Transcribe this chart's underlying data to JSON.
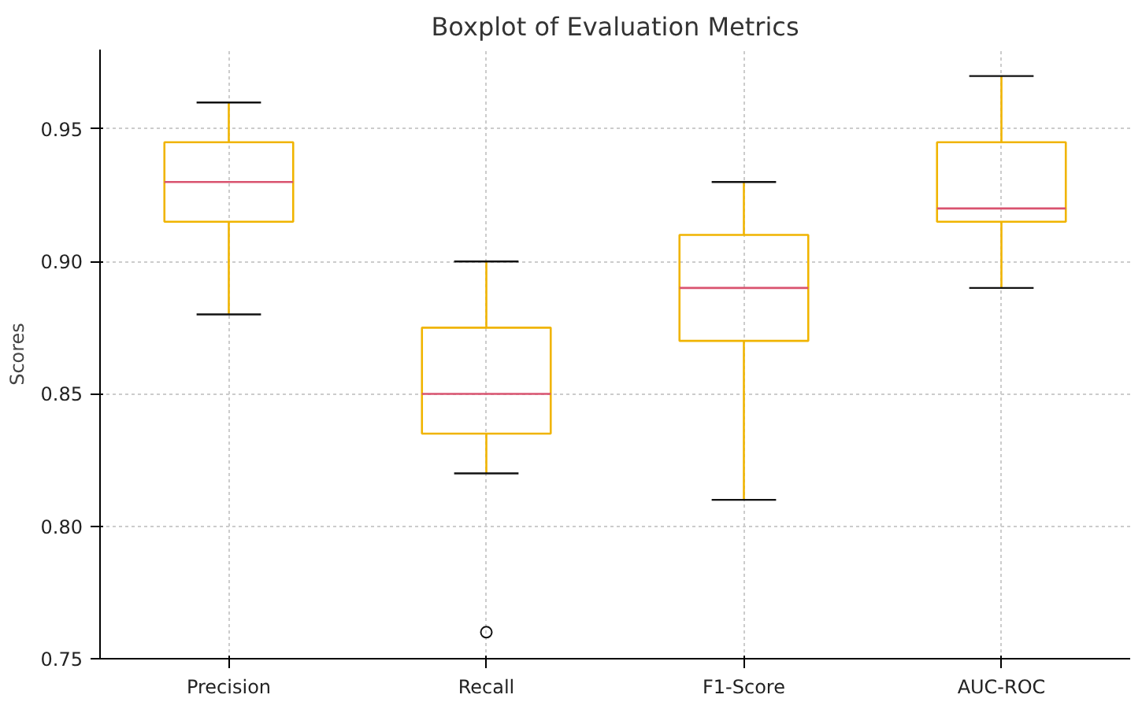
{
  "chart_data": {
    "type": "box",
    "title": "Boxplot of Evaluation Metrics",
    "ylabel": "Scores",
    "categories": [
      "Precision",
      "Recall",
      "F1-Score",
      "AUC-ROC"
    ],
    "color": "#f0b400",
    "boxes": [
      {
        "low": 0.88,
        "q1": 0.915,
        "median": 0.93,
        "q3": 0.945,
        "high": 0.96
      },
      {
        "low": 0.82,
        "q1": 0.835,
        "median": 0.85,
        "q3": 0.875,
        "high": 0.9,
        "outliers": [
          0.76
        ]
      },
      {
        "low": 0.81,
        "q1": 0.87,
        "median": 0.89,
        "q3": 0.91,
        "high": 0.93
      },
      {
        "low": 0.89,
        "q1": 0.915,
        "median": 0.92,
        "q3": 0.945,
        "high": 0.97
      }
    ],
    "ylim": [
      0.75,
      0.98
    ],
    "yticks": [
      {
        "value": 0.75,
        "label": "0.75"
      },
      {
        "value": 0.8,
        "label": "0.80"
      },
      {
        "value": 0.85,
        "label": "0.85"
      },
      {
        "value": 0.9,
        "label": "0.90"
      },
      {
        "value": 0.95,
        "label": "0.95"
      }
    ],
    "grid": true
  }
}
